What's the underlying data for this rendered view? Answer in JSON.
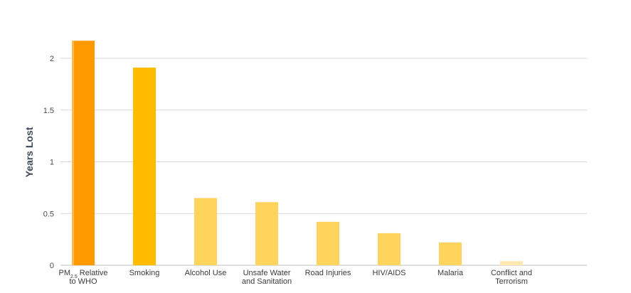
{
  "chart_data": {
    "type": "bar",
    "ylabel": "Years Lost",
    "xlabel": "",
    "ylim": [
      0,
      2.2
    ],
    "yticks": [
      {
        "value": 0,
        "label": "0"
      },
      {
        "value": 0.5,
        "label": "0.5"
      },
      {
        "value": 1,
        "label": "1"
      },
      {
        "value": 1.5,
        "label": "1.5"
      },
      {
        "value": 2,
        "label": "2"
      }
    ],
    "grid": true,
    "categories": [
      "PM2.5 Relative to WHO",
      "Smoking",
      "Alcohol Use",
      "Unsafe Water and Sanitation",
      "Road Injuries",
      "HIV/AIDS",
      "Malaria",
      "Conflict and Terrorism"
    ],
    "category_label_lines": [
      [
        [
          {
            "t": "PM"
          },
          {
            "t": "2.5",
            "sub": true
          },
          {
            "t": " Relative"
          }
        ],
        [
          {
            "t": "to WHO"
          }
        ]
      ],
      [
        [
          {
            "t": "Smoking"
          }
        ]
      ],
      [
        [
          {
            "t": "Alcohol Use"
          }
        ]
      ],
      [
        [
          {
            "t": "Unsafe Water"
          }
        ],
        [
          {
            "t": "and Sanitation"
          }
        ]
      ],
      [
        [
          {
            "t": "Road Injuries"
          }
        ]
      ],
      [
        [
          {
            "t": "HIV/AIDS"
          }
        ]
      ],
      [
        [
          {
            "t": "Malaria"
          }
        ]
      ],
      [
        [
          {
            "t": "Conflict and"
          }
        ],
        [
          {
            "t": "Terrorism"
          }
        ]
      ]
    ],
    "values": [
      2.17,
      1.91,
      0.65,
      0.61,
      0.42,
      0.31,
      0.22,
      0.04
    ],
    "colors": [
      "#FF9900",
      "#FFBB00",
      "#FFD45C",
      "#FFD45C",
      "#FFD45C",
      "#FFD45C",
      "#FFD45C",
      "#FFE7B0"
    ],
    "first_bar_edge_color": "#FFB84D",
    "gridline_color": "#D9D9D9",
    "axis_color": "#BFBFBF"
  }
}
